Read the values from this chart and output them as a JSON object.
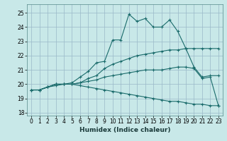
{
  "xlabel": "Humidex (Indice chaleur)",
  "bg_color": "#c8e8e8",
  "grid_color": "#9ab8c8",
  "line_color": "#1a6b6b",
  "xlim": [
    -0.5,
    23.5
  ],
  "ylim": [
    17.8,
    25.6
  ],
  "yticks": [
    18,
    19,
    20,
    21,
    22,
    23,
    24,
    25
  ],
  "xticks": [
    0,
    1,
    2,
    3,
    4,
    5,
    6,
    7,
    8,
    9,
    10,
    11,
    12,
    13,
    14,
    15,
    16,
    17,
    18,
    19,
    20,
    21,
    22,
    23
  ],
  "lines": [
    {
      "x": [
        0,
        1,
        2,
        3,
        4,
        5,
        6,
        7,
        8,
        9,
        10,
        11,
        12,
        13,
        14,
        15,
        16,
        17,
        18,
        19,
        20,
        21,
        22,
        23
      ],
      "y": [
        19.6,
        19.6,
        19.8,
        19.9,
        20.0,
        20.1,
        20.5,
        20.9,
        21.5,
        21.6,
        23.1,
        23.1,
        24.9,
        24.4,
        24.6,
        24.0,
        24.0,
        24.5,
        23.7,
        22.5,
        21.2,
        20.5,
        20.6,
        20.6
      ]
    },
    {
      "x": [
        0,
        1,
        2,
        3,
        4,
        5,
        6,
        7,
        8,
        9,
        10,
        11,
        12,
        13,
        14,
        15,
        16,
        17,
        18,
        19,
        20,
        21,
        22,
        23
      ],
      "y": [
        19.6,
        19.6,
        19.8,
        20.0,
        20.0,
        20.0,
        20.1,
        20.4,
        20.6,
        21.1,
        21.4,
        21.6,
        21.8,
        22.0,
        22.1,
        22.2,
        22.3,
        22.4,
        22.4,
        22.5,
        22.5,
        22.5,
        22.5,
        22.5
      ]
    },
    {
      "x": [
        0,
        1,
        2,
        3,
        4,
        5,
        6,
        7,
        8,
        9,
        10,
        11,
        12,
        13,
        14,
        15,
        16,
        17,
        18,
        19,
        20,
        21,
        22,
        23
      ],
      "y": [
        19.6,
        19.6,
        19.8,
        20.0,
        20.0,
        20.0,
        20.1,
        20.2,
        20.3,
        20.5,
        20.6,
        20.7,
        20.8,
        20.9,
        21.0,
        21.0,
        21.0,
        21.1,
        21.2,
        21.2,
        21.1,
        20.4,
        20.5,
        18.5
      ]
    },
    {
      "x": [
        0,
        1,
        2,
        3,
        4,
        5,
        6,
        7,
        8,
        9,
        10,
        11,
        12,
        13,
        14,
        15,
        16,
        17,
        18,
        19,
        20,
        21,
        22,
        23
      ],
      "y": [
        19.6,
        19.6,
        19.8,
        20.0,
        20.0,
        20.0,
        19.9,
        19.8,
        19.7,
        19.6,
        19.5,
        19.4,
        19.3,
        19.2,
        19.1,
        19.0,
        18.9,
        18.8,
        18.8,
        18.7,
        18.6,
        18.6,
        18.5,
        18.5
      ]
    }
  ]
}
